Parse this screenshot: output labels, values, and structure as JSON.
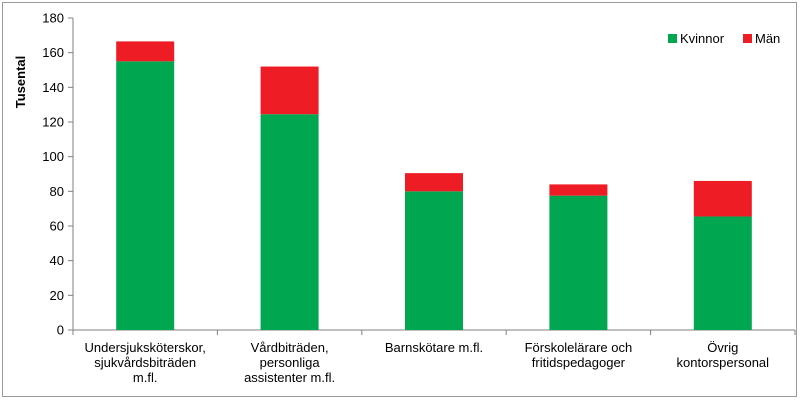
{
  "chart_data": {
    "type": "bar",
    "stacked": true,
    "ylabel": "Tusental",
    "xlabel": "",
    "ylim": [
      0,
      180
    ],
    "yticks": [
      0,
      20,
      40,
      60,
      80,
      100,
      120,
      140,
      160,
      180
    ],
    "grid": false,
    "legend_position": "top-right",
    "categories": [
      [
        "Undersjuksköterskor,",
        "sjukvårdsbiträden",
        "m.fl."
      ],
      [
        "Vårdbiträden,",
        "personliga",
        "assistenter m.fl."
      ],
      [
        "Barnskötare m.fl."
      ],
      [
        "Förskolelärare och",
        "fritidspedagoger"
      ],
      [
        "Övrig",
        "kontorspersonal"
      ]
    ],
    "series": [
      {
        "name": "Kvinnor",
        "color": "#00a650",
        "values": [
          155,
          124.5,
          80,
          77.5,
          65.5
        ]
      },
      {
        "name": "Män",
        "color": "#ee1c25",
        "values": [
          11.5,
          27.5,
          10.5,
          6.5,
          20.5
        ]
      }
    ]
  }
}
